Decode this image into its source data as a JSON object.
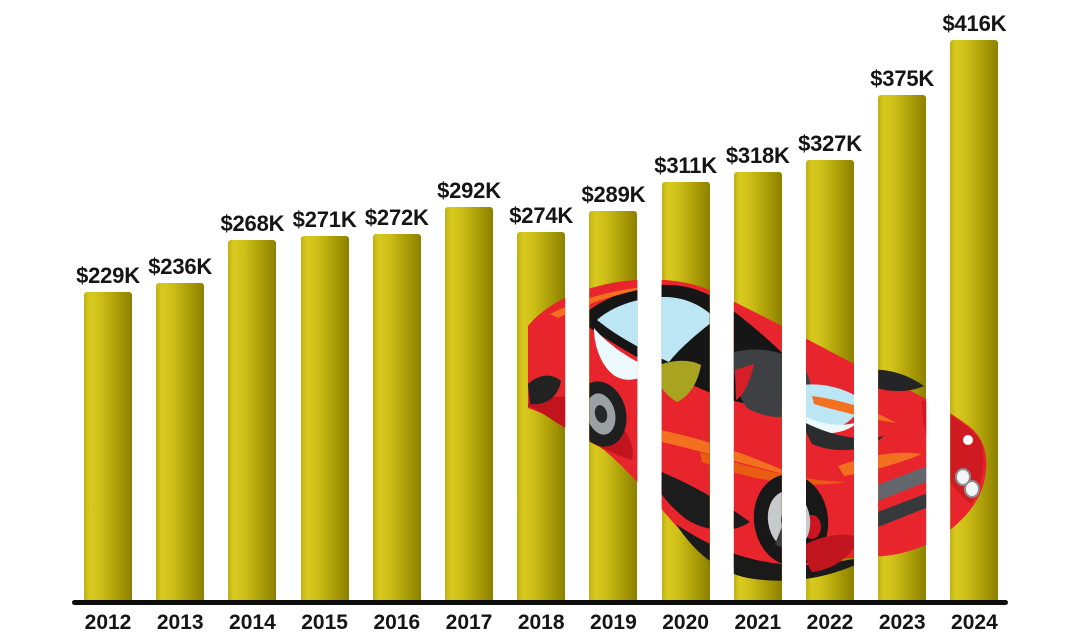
{
  "chart_data": {
    "type": "bar",
    "title": "",
    "xlabel": "",
    "ylabel": "",
    "categories": [
      "2012",
      "2013",
      "2014",
      "2015",
      "2016",
      "2017",
      "2018",
      "2019",
      "2020",
      "2021",
      "2022",
      "2023",
      "2024"
    ],
    "values": [
      229,
      236,
      268,
      271,
      272,
      292,
      274,
      289,
      311,
      318,
      327,
      375,
      416
    ],
    "value_labels": [
      "$229K",
      "$236K",
      "$268K",
      "$271K",
      "$272K",
      "$292K",
      "$274K",
      "$289K",
      "$311K",
      "$318K",
      "$327K",
      "$375K",
      "$416K"
    ],
    "ylim": [
      0,
      445
    ],
    "gridlines": false,
    "legend": false,
    "bar_gradient": [
      "#d8c91f",
      "#8d8000"
    ],
    "label_color": "#151515",
    "axis_line_color": "#0d0d0d"
  },
  "decoration": {
    "illustration": "red-sports-car",
    "car_colors": {
      "body_red": "#e8242c",
      "shadow_red": "#c0141e",
      "accent_orange": "#f37021",
      "glass_blue": "#bde6f4",
      "glass_white": "#ecf9fd",
      "window_olive": "#a9a41f",
      "black": "#161616",
      "gray": "#3e4043",
      "silver": "#c7cacc"
    }
  }
}
